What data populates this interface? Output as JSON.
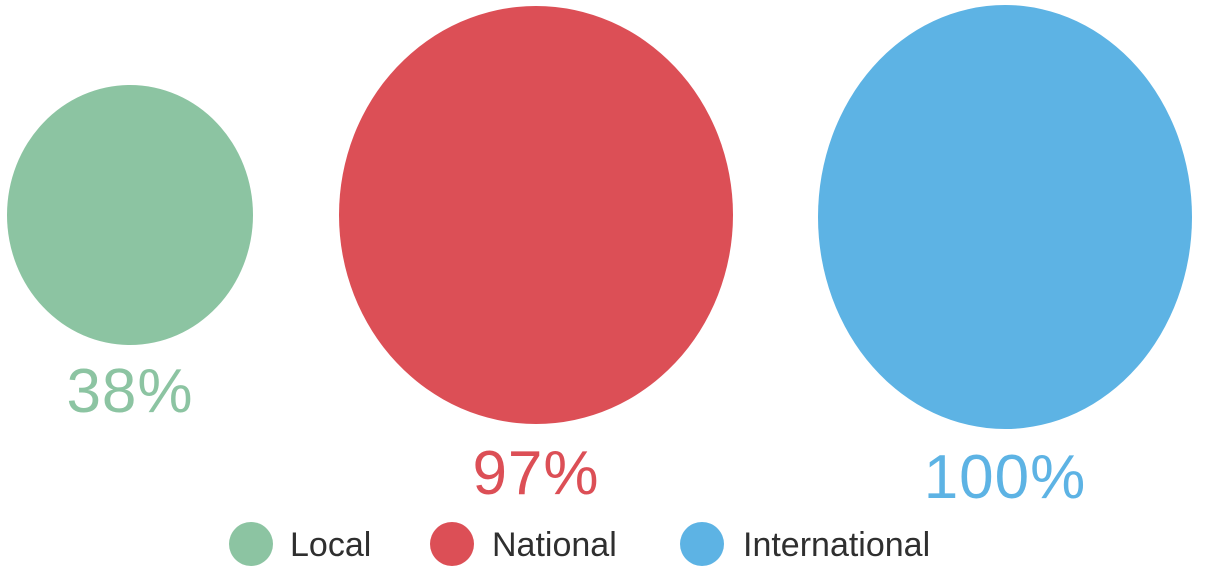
{
  "chart_data": {
    "type": "bubble",
    "categories": [
      "Local",
      "National",
      "International"
    ],
    "values": [
      38,
      97,
      100
    ],
    "value_labels": [
      "38%",
      "97%",
      "100%"
    ],
    "colors": [
      "#8cc4a2",
      "#dc4f56",
      "#5db3e4"
    ],
    "legend": {
      "placement": "bottom",
      "entries": [
        "Local",
        "National",
        "International"
      ]
    },
    "title": "",
    "xlabel": "",
    "ylabel": ""
  }
}
